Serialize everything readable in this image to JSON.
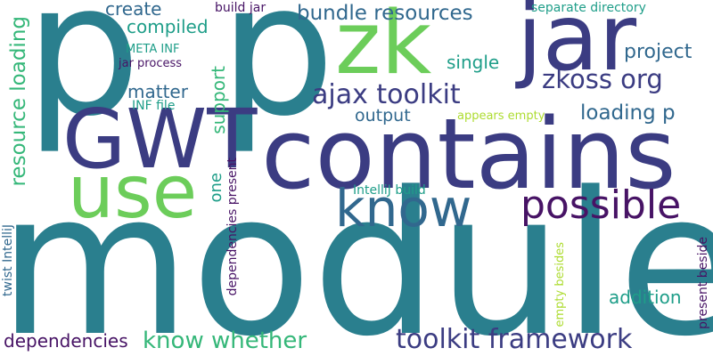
{
  "palette": {
    "teal": "#2a7f8e",
    "dark_indigo": "#3b3c82",
    "deep_purple": "#471365",
    "green": "#6ccd5a",
    "sea_green": "#1f9e89",
    "mid_green": "#35b779",
    "blue_slate": "#31688e",
    "lime": "#addc30",
    "background": "#ffffff"
  },
  "words": [
    {
      "text": "module",
      "color": "teal"
    },
    {
      "text": "p",
      "color": "teal"
    },
    {
      "text": "p",
      "color": "teal"
    },
    {
      "text": "contains",
      "color": "dark_indigo"
    },
    {
      "text": "jar",
      "color": "dark_indigo"
    },
    {
      "text": "zk",
      "color": "green"
    },
    {
      "text": "GWT",
      "color": "dark_indigo"
    },
    {
      "text": "use",
      "color": "green"
    },
    {
      "text": "know",
      "color": "blue_slate"
    },
    {
      "text": "possible",
      "color": "deep_purple"
    },
    {
      "text": "toolkit framework",
      "color": "dark_indigo"
    },
    {
      "text": "ajax toolkit",
      "color": "dark_indigo"
    },
    {
      "text": "zkoss org",
      "color": "dark_indigo"
    },
    {
      "text": "bundle resources",
      "color": "blue_slate"
    },
    {
      "text": "know whether",
      "color": "mid_green"
    },
    {
      "text": "loading p",
      "color": "blue_slate"
    },
    {
      "text": "resource loading",
      "color": "mid_green"
    },
    {
      "text": "project",
      "color": "blue_slate"
    },
    {
      "text": "single",
      "color": "sea_green"
    },
    {
      "text": "support",
      "color": "mid_green"
    },
    {
      "text": "dependencies",
      "color": "deep_purple"
    },
    {
      "text": "addition",
      "color": "sea_green"
    },
    {
      "text": "create",
      "color": "blue_slate"
    },
    {
      "text": "compiled",
      "color": "sea_green"
    },
    {
      "text": "matter",
      "color": "blue_slate"
    },
    {
      "text": "output",
      "color": "blue_slate"
    },
    {
      "text": "one",
      "color": "sea_green"
    },
    {
      "text": "build jar",
      "color": "deep_purple"
    },
    {
      "text": "separate directory",
      "color": "sea_green"
    },
    {
      "text": "META INF",
      "color": "sea_green"
    },
    {
      "text": "jar process",
      "color": "deep_purple"
    },
    {
      "text": "INF file",
      "color": "sea_green"
    },
    {
      "text": "appears empty",
      "color": "lime"
    },
    {
      "text": "IntelliJ build",
      "color": "sea_green"
    },
    {
      "text": "dependencies present",
      "color": "deep_purple"
    },
    {
      "text": "twist IntelliJ",
      "color": "blue_slate"
    },
    {
      "text": "empty besides",
      "color": "lime"
    },
    {
      "text": "present beside",
      "color": "deep_purple"
    }
  ]
}
